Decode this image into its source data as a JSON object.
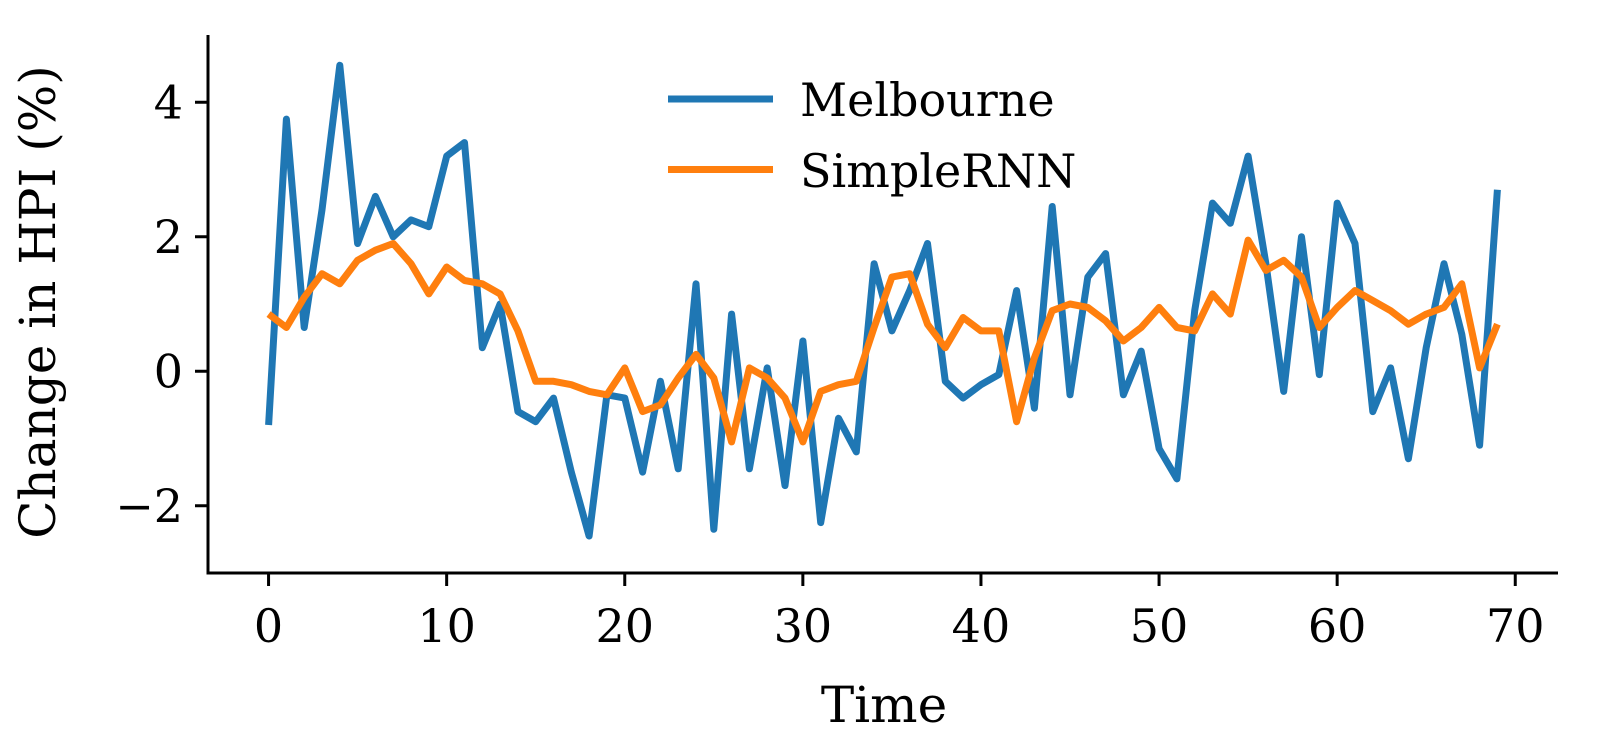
{
  "chart_data": {
    "type": "line",
    "title": "",
    "xlabel": "Time",
    "ylabel": "Change in HPI (%)",
    "grid": false,
    "legend_position": "upper center",
    "xlim": [
      -3.4,
      72.4
    ],
    "ylim": [
      -3.0,
      5.0
    ],
    "xticks": [
      0,
      10,
      20,
      30,
      40,
      50,
      60,
      70
    ],
    "yticks": [
      -2,
      0,
      2,
      4
    ],
    "x": [
      0,
      1,
      2,
      3,
      4,
      5,
      6,
      7,
      8,
      9,
      10,
      11,
      12,
      13,
      14,
      15,
      16,
      17,
      18,
      19,
      20,
      21,
      22,
      23,
      24,
      25,
      26,
      27,
      28,
      29,
      30,
      31,
      32,
      33,
      34,
      35,
      36,
      37,
      38,
      39,
      40,
      41,
      42,
      43,
      44,
      45,
      46,
      47,
      48,
      49,
      50,
      51,
      52,
      53,
      54,
      55,
      56,
      57,
      58,
      59,
      60,
      61,
      62,
      63,
      64,
      65,
      66,
      67,
      68,
      69
    ],
    "series": [
      {
        "name": "Melbourne",
        "color": "#1f77b4",
        "values": [
          -0.8,
          3.75,
          0.65,
          2.4,
          4.55,
          1.9,
          2.6,
          2.0,
          2.25,
          2.15,
          3.2,
          3.4,
          0.35,
          1.0,
          -0.6,
          -0.75,
          -0.4,
          -1.5,
          -2.45,
          -0.35,
          -0.4,
          -1.5,
          -0.15,
          -1.45,
          1.3,
          -2.35,
          0.85,
          -1.45,
          0.05,
          -1.7,
          0.45,
          -2.25,
          -0.7,
          -1.2,
          1.6,
          0.6,
          1.2,
          1.9,
          -0.15,
          -0.4,
          -0.2,
          -0.05,
          1.2,
          -0.55,
          2.45,
          -0.35,
          1.4,
          1.75,
          -0.35,
          0.3,
          -1.15,
          -1.6,
          0.9,
          2.5,
          2.2,
          3.2,
          1.6,
          -0.3,
          2.0,
          -0.05,
          2.5,
          1.9,
          -0.6,
          0.05,
          -1.3,
          0.35,
          1.6,
          0.55,
          -1.1,
          2.7
        ]
      },
      {
        "name": "SimpleRNN",
        "color": "#ff7f0e",
        "values": [
          0.85,
          0.65,
          1.1,
          1.45,
          1.3,
          1.65,
          1.8,
          1.9,
          1.6,
          1.15,
          1.55,
          1.35,
          1.3,
          1.15,
          0.6,
          -0.15,
          -0.15,
          -0.2,
          -0.3,
          -0.35,
          0.05,
          -0.6,
          -0.5,
          -0.1,
          0.25,
          -0.1,
          -1.05,
          0.05,
          -0.1,
          -0.4,
          -1.05,
          -0.3,
          -0.2,
          -0.15,
          0.65,
          1.4,
          1.45,
          0.7,
          0.35,
          0.8,
          0.6,
          0.6,
          -0.75,
          0.2,
          0.9,
          1.0,
          0.95,
          0.75,
          0.45,
          0.65,
          0.95,
          0.65,
          0.6,
          1.15,
          0.85,
          1.95,
          1.5,
          1.65,
          1.4,
          0.65,
          0.95,
          1.2,
          1.05,
          0.9,
          0.7,
          0.85,
          0.95,
          1.3,
          0.05,
          0.7
        ]
      }
    ]
  }
}
